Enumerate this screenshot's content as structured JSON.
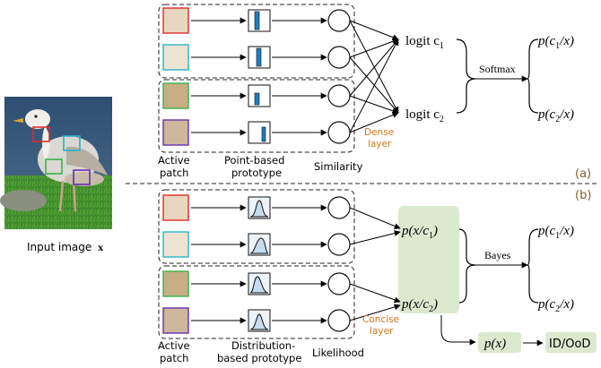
{
  "colors": {
    "patch_borders": [
      "#e02a2a",
      "#25b6c9",
      "#3bb34a",
      "#6a2fb0"
    ],
    "prototype_fill": "#1e7fc4",
    "highlight": "#dbe9cf",
    "layer_label": "#d9751a",
    "panel_label": "#8a5a2b"
  },
  "input": {
    "label": "Input image",
    "symbol": "x"
  },
  "panel_a": {
    "tag": "(a)",
    "patch_label_1": "Active",
    "patch_label_2": "patch",
    "prototype_label_1": "Point-based",
    "prototype_label_2": "prototype",
    "similarity_label": "Similarity",
    "layer_label_1": "Dense",
    "layer_label_2": "layer",
    "logit_1": "logit c",
    "logit_1_sub": "1",
    "logit_2": "logit c",
    "logit_2_sub": "2",
    "op_label": "Softmax",
    "out_1": "p(c",
    "out_1_sub": "1",
    "out_1_tail": "/x)",
    "out_2": "p(c",
    "out_2_sub": "2",
    "out_2_tail": "/x)"
  },
  "panel_b": {
    "tag": "(b)",
    "patch_label_1": "Active",
    "patch_label_2": "patch",
    "prototype_label_1": "Distribution-",
    "prototype_label_2": "based prototype",
    "likelihood_label": "Likelihood",
    "layer_label_1": "Concise",
    "layer_label_2": "layer",
    "cond_1": "p(x/c",
    "cond_1_sub": "1",
    "cond_1_tail": ")",
    "cond_2": "p(x/c",
    "cond_2_sub": "2",
    "cond_2_tail": ")",
    "op_label": "Bayes",
    "out_1": "p(c",
    "out_1_sub": "1",
    "out_1_tail": "/x)",
    "out_2": "p(c",
    "out_2_sub": "2",
    "out_2_tail": "/x)",
    "marginal": "p(x)",
    "ood_label": "ID/OoD"
  }
}
